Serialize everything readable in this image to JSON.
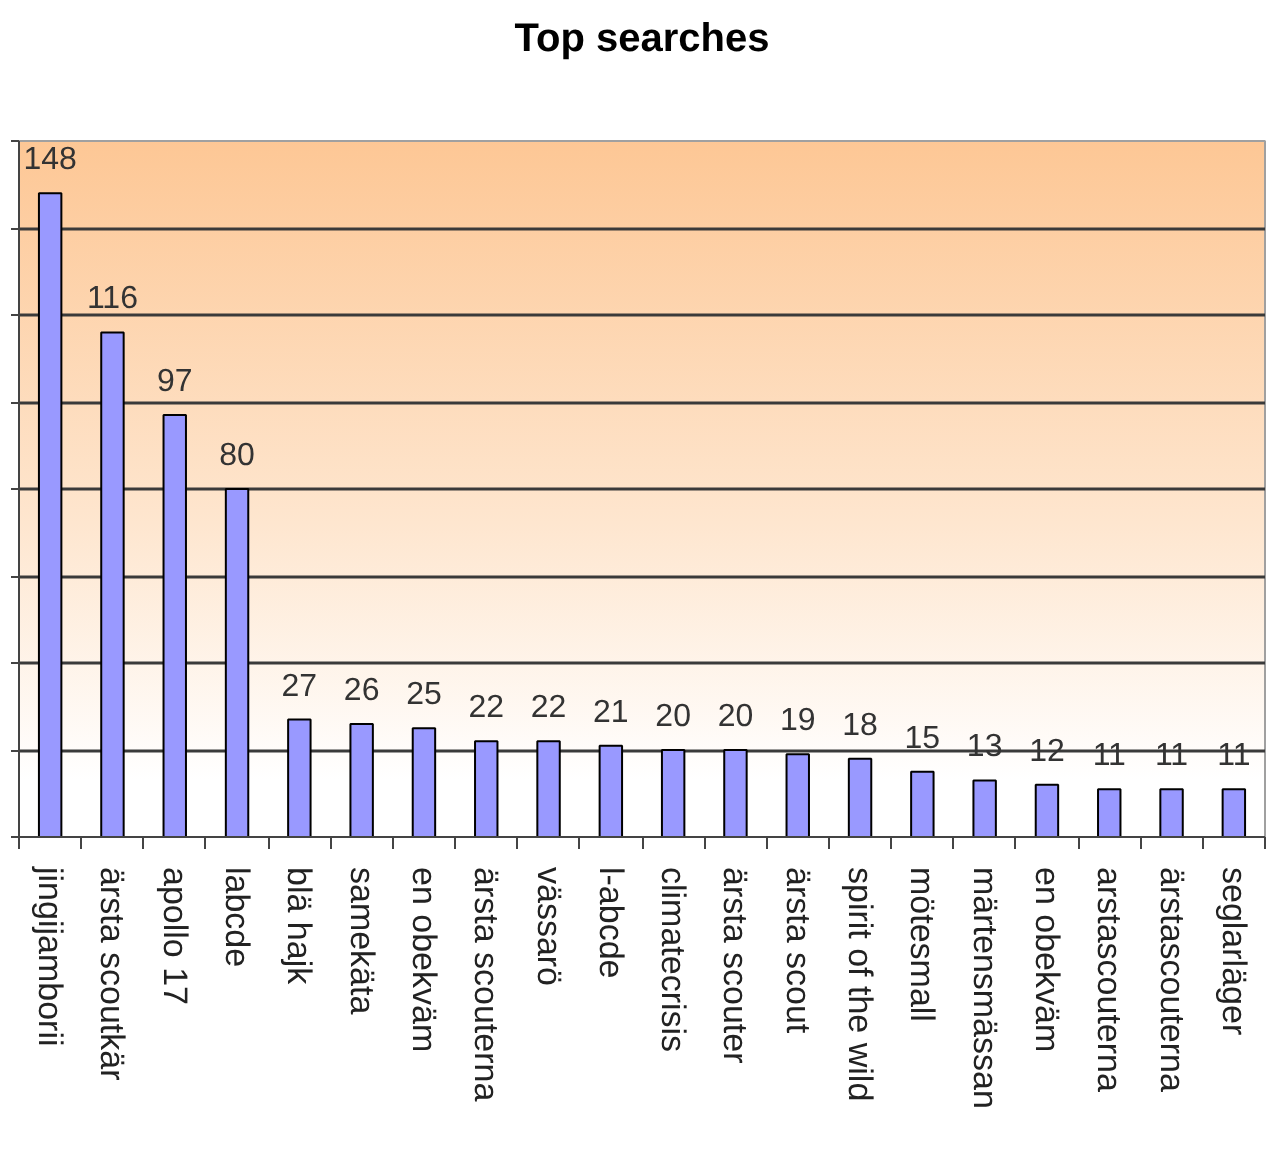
{
  "chart_data": {
    "type": "bar",
    "title": "Top searches",
    "categories": [
      "jingijamborii",
      "ärsta scoutkär",
      "apollo 17",
      "labcde",
      "blä hajk",
      "samekäta",
      "en obekväm",
      "ärsta scouterna",
      "vässarö",
      "l-abcde",
      "climatecrisis",
      "ärsta scouter",
      "ärsta scout",
      "spirit of the wild",
      "mötesmall",
      "märtensmässan",
      "en obekväm",
      "arstascouterna",
      "ärstascouterna",
      "seglarläger"
    ],
    "values": [
      148,
      116,
      97,
      80,
      27,
      26,
      25,
      22,
      22,
      21,
      20,
      20,
      19,
      18,
      15,
      13,
      12,
      11,
      11,
      11
    ],
    "color": "#9999ff",
    "ylim": [
      0,
      160
    ],
    "yticks": [
      {
        "value": 0,
        "label": null
      },
      {
        "value": 20,
        "label": null
      },
      {
        "value": 40,
        "label": null
      },
      {
        "value": 60,
        "label": null
      },
      {
        "value": 80,
        "label": null
      },
      {
        "value": 100,
        "label": null
      },
      {
        "value": 120,
        "label": null
      },
      {
        "value": 140,
        "label": null
      },
      {
        "value": 160,
        "label": null
      }
    ],
    "grid": "y",
    "data_labels": true,
    "tick_labels": "x"
  }
}
